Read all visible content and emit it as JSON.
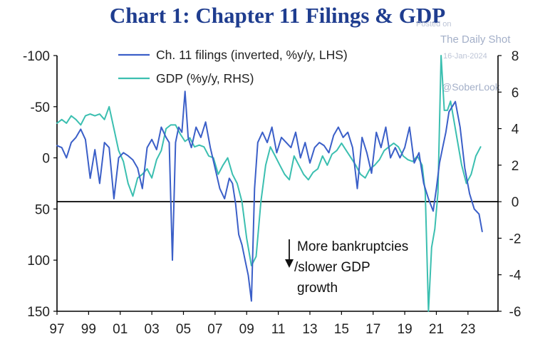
{
  "header": {
    "title": "Chart 1: Chapter 11 Filings & GDP"
  },
  "watermark": {
    "posted": "Posted on",
    "site": "The Daily Shot",
    "date": "16-Jan-2024",
    "handle": "@SoberLook"
  },
  "chart_data": {
    "type": "line",
    "title": "Chart 1: Chapter 11 Filings & GDP",
    "left_axis": {
      "label": "Ch. 11 filings (inverted, %y/y)",
      "range": [
        150,
        -100
      ],
      "inverted": true,
      "ticks": [
        -100,
        -50,
        0,
        50,
        100,
        150
      ],
      "tick_labels": [
        "-100",
        "-50",
        "0",
        "50",
        "100",
        "150"
      ]
    },
    "right_axis": {
      "range": [
        -6,
        8
      ],
      "ticks": [
        8,
        6,
        4,
        2,
        0,
        -2,
        -4,
        -6
      ],
      "tick_labels": [
        "8",
        "6",
        "4",
        "2",
        "0",
        "-2",
        "-4",
        "-6"
      ]
    },
    "x_axis": {
      "range": [
        1997,
        2024.9
      ],
      "ticks": [
        1997,
        1999,
        2001,
        2003,
        2005,
        2007,
        2009,
        2011,
        2013,
        2015,
        2017,
        2019,
        2021,
        2023
      ],
      "tick_labels": [
        "97",
        "99",
        "01",
        "03",
        "05",
        "07",
        "09",
        "11",
        "13",
        "15",
        "17",
        "19",
        "21",
        "23"
      ]
    },
    "zero_line": {
      "axis": "right",
      "value": 0
    },
    "colors": {
      "filings": "#3b5fc8",
      "gdp": "#3bbfb0",
      "title": "#1f3d8f",
      "axis": "#000000"
    },
    "series": [
      {
        "name": "Ch. 11 filings (inverted, %y/y, LHS)",
        "axis": "left",
        "color": "#3b5fc8",
        "x": [
          1997.0,
          1997.3,
          1997.6,
          1997.9,
          1998.2,
          1998.5,
          1998.8,
          1999.1,
          1999.4,
          1999.7,
          2000.0,
          2000.3,
          2000.6,
          2000.9,
          2001.2,
          2001.5,
          2001.8,
          2002.1,
          2002.4,
          2002.7,
          2003.0,
          2003.3,
          2003.6,
          2003.9,
          2004.1,
          2004.3,
          2004.5,
          2004.7,
          2004.9,
          2005.1,
          2005.3,
          2005.5,
          2005.8,
          2006.1,
          2006.4,
          2006.7,
          2007.0,
          2007.3,
          2007.6,
          2007.9,
          2008.1,
          2008.3,
          2008.5,
          2008.7,
          2008.9,
          2009.1,
          2009.3,
          2009.5,
          2009.7,
          2010.0,
          2010.3,
          2010.6,
          2010.9,
          2011.2,
          2011.5,
          2011.8,
          2012.1,
          2012.4,
          2012.7,
          2013.0,
          2013.3,
          2013.6,
          2013.9,
          2014.2,
          2014.5,
          2014.8,
          2015.1,
          2015.4,
          2015.7,
          2016.0,
          2016.3,
          2016.6,
          2016.9,
          2017.2,
          2017.5,
          2017.8,
          2018.1,
          2018.4,
          2018.7,
          2019.0,
          2019.3,
          2019.6,
          2019.9,
          2020.2,
          2020.5,
          2020.8,
          2021.0,
          2021.2,
          2021.4,
          2021.6,
          2021.8,
          2022.0,
          2022.2,
          2022.5,
          2022.8,
          2023.1,
          2023.4,
          2023.7,
          2023.9
        ],
        "values": [
          -12,
          -10,
          0,
          -15,
          -20,
          -28,
          -18,
          20,
          -8,
          25,
          -15,
          -10,
          40,
          0,
          -5,
          -2,
          2,
          10,
          30,
          -10,
          -18,
          -8,
          -30,
          -20,
          -15,
          100,
          -15,
          -30,
          -25,
          -65,
          -20,
          -10,
          -30,
          -20,
          -35,
          -10,
          10,
          30,
          40,
          20,
          25,
          45,
          75,
          85,
          100,
          115,
          140,
          30,
          -15,
          -25,
          -15,
          -30,
          -5,
          -20,
          -15,
          -10,
          -25,
          0,
          -15,
          5,
          -10,
          -15,
          -12,
          -5,
          -22,
          -30,
          -20,
          -25,
          -10,
          30,
          -20,
          -5,
          15,
          -25,
          -10,
          -30,
          0,
          -10,
          0,
          -10,
          -30,
          5,
          -5,
          25,
          40,
          52,
          30,
          5,
          -10,
          -25,
          -45,
          -50,
          -55,
          -30,
          10,
          35,
          50,
          55,
          72
        ]
      },
      {
        "name": "GDP (%y/y, RHS)",
        "axis": "right",
        "color": "#3bbfb0",
        "x": [
          1997.0,
          1997.3,
          1997.6,
          1997.9,
          1998.2,
          1998.5,
          1998.8,
          1999.1,
          1999.4,
          1999.7,
          2000.0,
          2000.3,
          2000.6,
          2000.9,
          2001.2,
          2001.5,
          2001.8,
          2002.1,
          2002.4,
          2002.7,
          2003.0,
          2003.3,
          2003.6,
          2003.9,
          2004.2,
          2004.5,
          2004.8,
          2005.1,
          2005.4,
          2005.7,
          2006.0,
          2006.3,
          2006.6,
          2006.9,
          2007.2,
          2007.5,
          2007.8,
          2008.1,
          2008.4,
          2008.7,
          2009.0,
          2009.3,
          2009.6,
          2009.9,
          2010.2,
          2010.5,
          2010.8,
          2011.1,
          2011.4,
          2011.7,
          2012.0,
          2012.3,
          2012.6,
          2012.9,
          2013.2,
          2013.5,
          2013.8,
          2014.1,
          2014.4,
          2014.7,
          2015.0,
          2015.3,
          2015.6,
          2015.9,
          2016.2,
          2016.5,
          2016.8,
          2017.1,
          2017.4,
          2017.7,
          2018.0,
          2018.3,
          2018.6,
          2018.9,
          2019.2,
          2019.5,
          2019.8,
          2020.1,
          2020.3,
          2020.5,
          2020.7,
          2020.9,
          2021.1,
          2021.3,
          2021.5,
          2021.7,
          2021.9,
          2022.1,
          2022.3,
          2022.6,
          2022.9,
          2023.2,
          2023.5,
          2023.8
        ],
        "values": [
          4.3,
          4.5,
          4.3,
          4.7,
          4.5,
          4.2,
          4.7,
          4.8,
          4.7,
          4.8,
          4.5,
          5.2,
          4.0,
          2.8,
          2.2,
          1.0,
          0.3,
          1.3,
          1.5,
          1.8,
          1.3,
          2.3,
          2.8,
          4.0,
          4.2,
          4.2,
          3.7,
          3.3,
          3.5,
          3.0,
          3.1,
          3.0,
          2.5,
          2.4,
          1.5,
          2.0,
          2.4,
          1.5,
          1.0,
          0.0,
          -2.0,
          -3.5,
          -3.0,
          0.0,
          2.0,
          3.0,
          2.5,
          2.0,
          1.5,
          1.2,
          2.5,
          2.0,
          1.5,
          1.2,
          1.6,
          1.8,
          2.5,
          2.0,
          2.6,
          2.8,
          3.2,
          2.8,
          2.4,
          2.0,
          1.5,
          1.3,
          1.8,
          2.0,
          2.3,
          2.8,
          3.0,
          3.2,
          3.0,
          2.5,
          2.3,
          2.2,
          2.5,
          2.0,
          0.5,
          -6.0,
          -2.5,
          -1.5,
          0.5,
          8.0,
          5.0,
          5.0,
          5.5,
          4.5,
          3.5,
          2.0,
          1.0,
          1.5,
          2.5,
          3.0
        ]
      }
    ],
    "legend": {
      "position": "top-center",
      "entries": [
        "Ch. 11 filings (inverted, %y/y, LHS)",
        "GDP (%y/y, RHS)"
      ]
    },
    "annotations": {
      "arrow": "down",
      "lines": [
        "More bankruptcies",
        "/slower GDP",
        "growth"
      ]
    }
  }
}
